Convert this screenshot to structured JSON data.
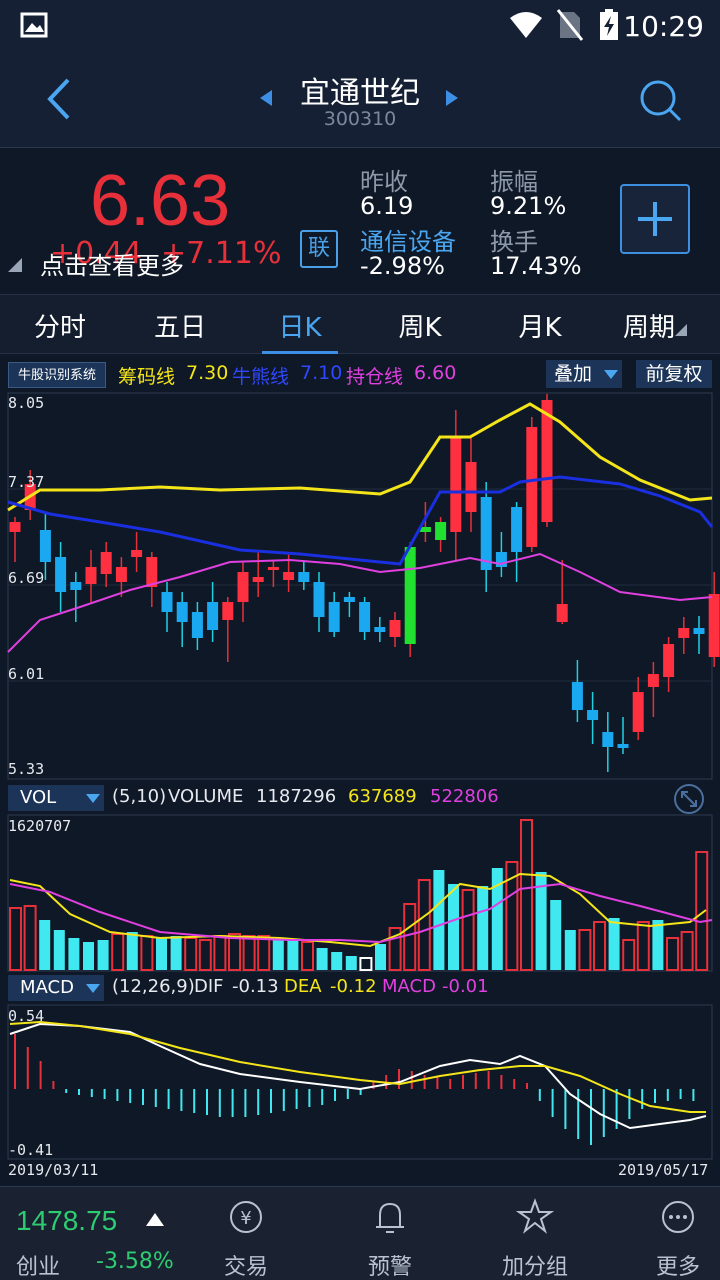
{
  "status": {
    "time": "10:29"
  },
  "header": {
    "stock_name": "宜通世纪",
    "stock_code": "300310"
  },
  "quote": {
    "price": "6.63",
    "change": "+0.44",
    "change_pct": "+7.11%",
    "view_more": "点击查看更多",
    "link_label": "联",
    "prev_close_label": "昨收",
    "prev_close": "6.19",
    "amplitude_label": "振幅",
    "amplitude": "9.21%",
    "sector": "通信设备",
    "sector_change": "-2.98%",
    "turnover_label": "换手",
    "turnover": "17.43%"
  },
  "tabs": [
    "分时",
    "五日",
    "日K",
    "周K",
    "月K",
    "周期"
  ],
  "indicator": {
    "system": "牛股识别系统",
    "chip_label": "筹码线",
    "chip_value": "7.30",
    "bull_label": "牛熊线",
    "bull_value": "7.10",
    "hold_label": "持仓线",
    "hold_value": "6.60",
    "overlay": "叠加",
    "adjust": "前复权",
    "colors": {
      "chip": "#f4e51a",
      "bull": "#1a2fe0",
      "hold": "#e040e0"
    }
  },
  "kline_axis": [
    "8.05",
    "7.37",
    "6.69",
    "6.01",
    "5.33"
  ],
  "volume": {
    "selector": "VOL",
    "params": "(5,10)",
    "name": "VOLUME",
    "value": "1187296",
    "ma5": "637689",
    "ma10": "522806",
    "max": "1620707"
  },
  "macd": {
    "selector": "MACD",
    "params": "(12,26,9)",
    "dif_label": "DIF",
    "dif": "-0.13",
    "dea_label": "DEA",
    "dea": "-0.12",
    "macd_label": "MACD",
    "macd": "-0.01",
    "max": "0.54",
    "min": "-0.41"
  },
  "dates": {
    "start": "2019/03/11",
    "end": "2019/05/17"
  },
  "bottom": {
    "index_value": "1478.75",
    "index_name": "创业",
    "index_change": "-3.58%",
    "nav": [
      "交易",
      "预警",
      "加分组",
      "更多"
    ]
  }
}
